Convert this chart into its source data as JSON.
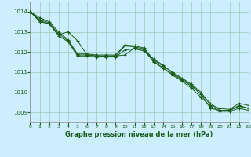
{
  "title": "Graphe pression niveau de la mer (hPa)",
  "background_color": "#cceeff",
  "grid_color": "#99ccbb",
  "line_color": "#1a5c1a",
  "label_color": "#1a5c1a",
  "xlim": [
    0,
    23
  ],
  "ylim": [
    1008.5,
    1014.5
  ],
  "yticks": [
    1009,
    1010,
    1011,
    1012,
    1013,
    1014
  ],
  "xticks": [
    0,
    1,
    2,
    3,
    4,
    5,
    6,
    7,
    8,
    9,
    10,
    11,
    12,
    13,
    14,
    15,
    16,
    17,
    18,
    19,
    20,
    21,
    22,
    23
  ],
  "lines": [
    [
      1014.0,
      1013.7,
      1013.5,
      1013.0,
      1012.6,
      1011.9,
      1011.9,
      1011.85,
      1011.85,
      1011.85,
      1012.35,
      1012.3,
      1012.2,
      1011.6,
      1011.3,
      1011.0,
      1010.7,
      1010.4,
      1010.0,
      1009.35,
      1009.2,
      1009.15,
      1009.45,
      1009.35
    ],
    [
      1014.0,
      1013.6,
      1013.45,
      1012.9,
      1012.55,
      1011.85,
      1011.85,
      1011.8,
      1011.8,
      1011.8,
      1012.3,
      1012.25,
      1012.15,
      1011.5,
      1011.2,
      1010.9,
      1010.6,
      1010.3,
      1009.9,
      1009.2,
      1009.1,
      1009.1,
      1009.35,
      1009.2
    ],
    [
      1014.0,
      1013.55,
      1013.4,
      1012.85,
      1013.0,
      1012.55,
      1011.85,
      1011.8,
      1011.8,
      1011.8,
      1011.85,
      1012.2,
      1012.1,
      1011.65,
      1011.35,
      1010.95,
      1010.65,
      1010.35,
      1009.9,
      1009.45,
      1009.1,
      1009.1,
      1009.3,
      1009.2
    ],
    [
      1014.0,
      1013.5,
      1013.4,
      1012.8,
      1012.5,
      1011.8,
      1011.8,
      1011.75,
      1011.75,
      1011.75,
      1012.1,
      1012.15,
      1012.05,
      1011.55,
      1011.2,
      1010.85,
      1010.55,
      1010.2,
      1009.75,
      1009.3,
      1009.05,
      1009.05,
      1009.2,
      1009.1
    ]
  ]
}
